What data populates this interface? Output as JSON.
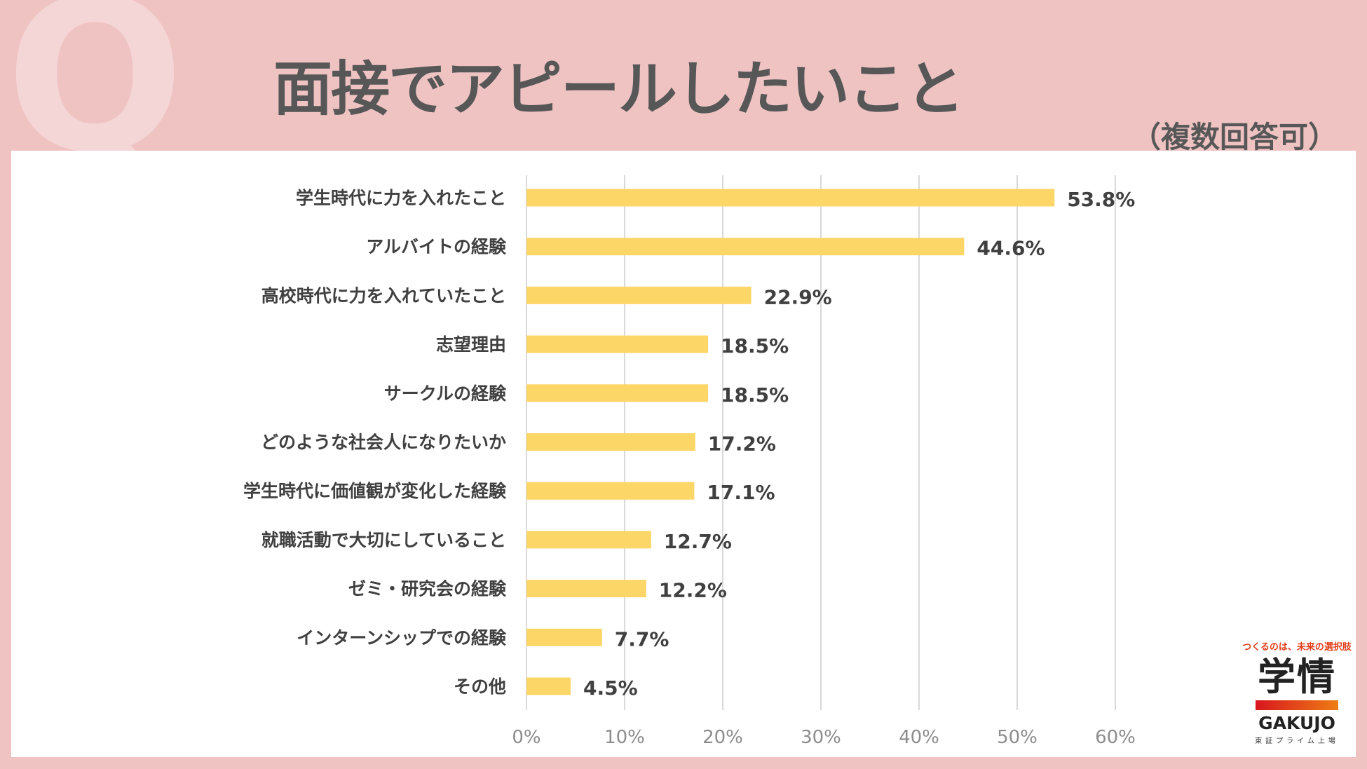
{
  "header": {
    "q_mark": "Q",
    "title": "面接でアピールしたいこと",
    "subtitle": "（複数回答可）"
  },
  "logo": {
    "tagline": "つくるのは、未来の選択肢",
    "name_jp": "学情",
    "name_en": "GAKUJO",
    "listing": "東証プライム上場"
  },
  "colors": {
    "bar": "#fcd667",
    "background": "#f0c3c3",
    "grid": "#d9d9d9",
    "text": "#404040"
  },
  "chart_data": {
    "type": "bar",
    "orientation": "horizontal",
    "title": "面接でアピールしたいこと",
    "subtitle": "（複数回答可）",
    "categories": [
      "学生時代に力を入れたこと",
      "アルバイトの経験",
      "高校時代に力を入れていたこと",
      "志望理由",
      "サークルの経験",
      "どのような社会人になりたいか",
      "学生時代に価値観が変化した経験",
      "就職活動で大切にしていること",
      "ゼミ・研究会の経験",
      "インターンシップでの経験",
      "その他"
    ],
    "values": [
      53.8,
      44.6,
      22.9,
      18.5,
      18.5,
      17.2,
      17.1,
      12.7,
      12.2,
      7.7,
      4.5
    ],
    "data_labels": [
      "53.8%",
      "44.6%",
      "22.9%",
      "18.5%",
      "18.5%",
      "17.2%",
      "17.1%",
      "12.7%",
      "12.2%",
      "7.7%",
      "4.5%"
    ],
    "xlim": [
      0,
      60
    ],
    "xticks": [
      "0%",
      "10%",
      "20%",
      "30%",
      "40%",
      "50%",
      "60%"
    ],
    "grid": "vertical",
    "legend": "none"
  }
}
